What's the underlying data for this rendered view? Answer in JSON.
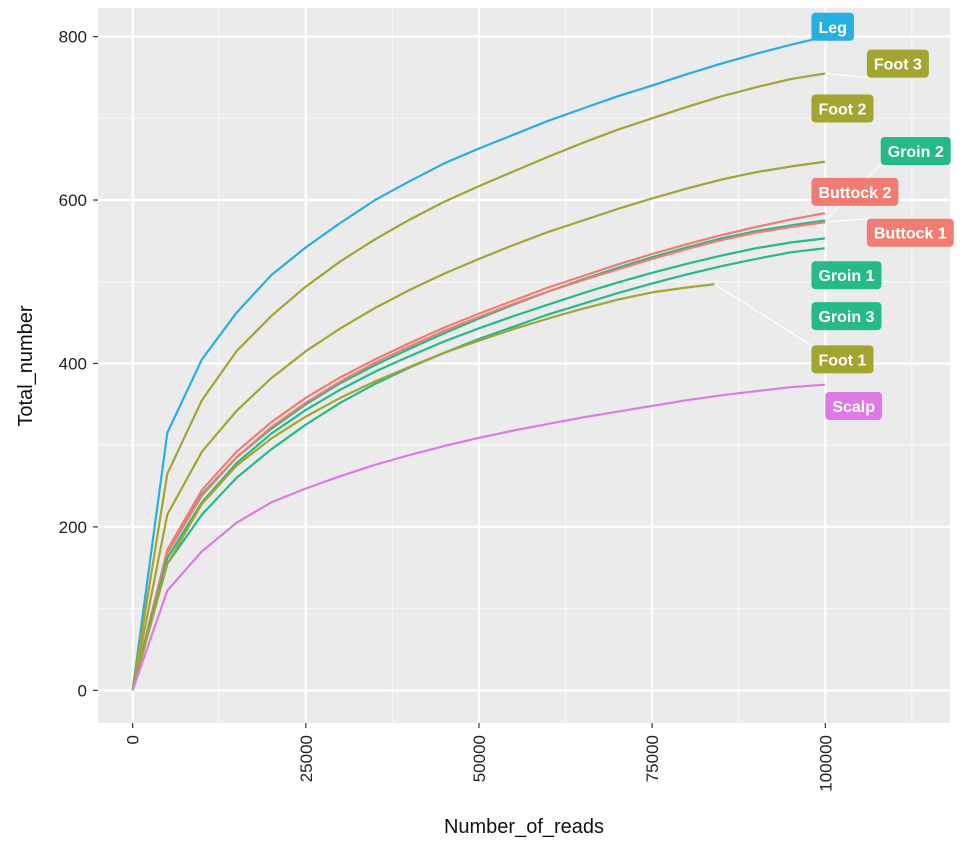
{
  "chart_data": {
    "type": "line",
    "xlabel": "Number_of_reads",
    "ylabel": "Total_number",
    "xlim": [
      -5000,
      118000
    ],
    "ylim": [
      -40,
      835
    ],
    "x_ticks": [
      0,
      25000,
      50000,
      75000,
      100000
    ],
    "y_ticks": [
      0,
      200,
      400,
      600,
      800
    ],
    "grid": true,
    "legend": "direct labels",
    "series": [
      {
        "name": "Leg",
        "color": "#29AEE0",
        "label_at": [
          98000,
          812
        ],
        "points": [
          [
            0,
            0
          ],
          [
            5000,
            315
          ],
          [
            10000,
            405
          ],
          [
            15000,
            462
          ],
          [
            20000,
            508
          ],
          [
            25000,
            542
          ],
          [
            30000,
            572
          ],
          [
            35000,
            600
          ],
          [
            40000,
            623
          ],
          [
            45000,
            645
          ],
          [
            50000,
            663
          ],
          [
            55000,
            680
          ],
          [
            60000,
            697
          ],
          [
            65000,
            712
          ],
          [
            70000,
            727
          ],
          [
            75000,
            740
          ],
          [
            80000,
            754
          ],
          [
            85000,
            767
          ],
          [
            90000,
            779
          ],
          [
            95000,
            790
          ],
          [
            100000,
            800
          ]
        ]
      },
      {
        "name": "Foot 3",
        "color": "#A3A530",
        "label_at": [
          106000,
          767
        ],
        "points": [
          [
            0,
            0
          ],
          [
            5000,
            265
          ],
          [
            10000,
            355
          ],
          [
            15000,
            415
          ],
          [
            20000,
            458
          ],
          [
            25000,
            494
          ],
          [
            30000,
            525
          ],
          [
            35000,
            552
          ],
          [
            40000,
            576
          ],
          [
            45000,
            598
          ],
          [
            50000,
            617
          ],
          [
            55000,
            635
          ],
          [
            60000,
            653
          ],
          [
            65000,
            670
          ],
          [
            70000,
            686
          ],
          [
            75000,
            700
          ],
          [
            80000,
            714
          ],
          [
            85000,
            727
          ],
          [
            90000,
            738
          ],
          [
            95000,
            748
          ],
          [
            100000,
            755
          ]
        ]
      },
      {
        "name": "Foot 2",
        "color": "#A3A530",
        "label_at": [
          98000,
          712
        ],
        "points": [
          [
            0,
            0
          ],
          [
            5000,
            215
          ],
          [
            10000,
            292
          ],
          [
            15000,
            342
          ],
          [
            20000,
            382
          ],
          [
            25000,
            415
          ],
          [
            30000,
            443
          ],
          [
            35000,
            468
          ],
          [
            40000,
            490
          ],
          [
            45000,
            510
          ],
          [
            50000,
            528
          ],
          [
            55000,
            545
          ],
          [
            60000,
            561
          ],
          [
            65000,
            575
          ],
          [
            70000,
            589
          ],
          [
            75000,
            602
          ],
          [
            80000,
            614
          ],
          [
            85000,
            625
          ],
          [
            90000,
            634
          ],
          [
            95000,
            641
          ],
          [
            100000,
            647
          ]
        ]
      },
      {
        "name": "Groin 2",
        "color": "#26B98A",
        "label_at": [
          108000,
          660
        ],
        "points": [
          [
            0,
            0
          ],
          [
            5000,
            170
          ],
          [
            10000,
            240
          ],
          [
            15000,
            285
          ],
          [
            20000,
            320
          ],
          [
            25000,
            350
          ],
          [
            30000,
            376
          ],
          [
            35000,
            398
          ],
          [
            40000,
            418
          ],
          [
            45000,
            437
          ],
          [
            50000,
            455
          ],
          [
            55000,
            472
          ],
          [
            60000,
            488
          ],
          [
            65000,
            503
          ],
          [
            70000,
            517
          ],
          [
            75000,
            530
          ],
          [
            80000,
            542
          ],
          [
            85000,
            553
          ],
          [
            90000,
            562
          ],
          [
            95000,
            569
          ],
          [
            100000,
            575
          ]
        ]
      },
      {
        "name": "Buttock 2",
        "color": "#F07C74",
        "label_at": [
          98000,
          610
        ],
        "points": [
          [
            0,
            0
          ],
          [
            5000,
            172
          ],
          [
            10000,
            245
          ],
          [
            15000,
            292
          ],
          [
            20000,
            328
          ],
          [
            25000,
            358
          ],
          [
            30000,
            383
          ],
          [
            35000,
            405
          ],
          [
            40000,
            425
          ],
          [
            45000,
            444
          ],
          [
            50000,
            461
          ],
          [
            55000,
            477
          ],
          [
            60000,
            493
          ],
          [
            65000,
            507
          ],
          [
            70000,
            521
          ],
          [
            75000,
            534
          ],
          [
            80000,
            546
          ],
          [
            85000,
            557
          ],
          [
            90000,
            567
          ],
          [
            95000,
            576
          ],
          [
            100000,
            584
          ]
        ]
      },
      {
        "name": "Buttock 1",
        "color": "#F07C74",
        "label_at": [
          106000,
          560
        ],
        "points": [
          [
            0,
            0
          ],
          [
            5000,
            168
          ],
          [
            10000,
            238
          ],
          [
            15000,
            285
          ],
          [
            20000,
            322
          ],
          [
            25000,
            352
          ],
          [
            30000,
            378
          ],
          [
            35000,
            401
          ],
          [
            40000,
            421
          ],
          [
            45000,
            440
          ],
          [
            50000,
            457
          ],
          [
            55000,
            473
          ],
          [
            60000,
            488
          ],
          [
            65000,
            502
          ],
          [
            70000,
            515
          ],
          [
            75000,
            528
          ],
          [
            80000,
            540
          ],
          [
            85000,
            551
          ],
          [
            90000,
            560
          ],
          [
            95000,
            567
          ],
          [
            100000,
            573
          ]
        ]
      },
      {
        "name": "Groin 1",
        "color": "#26B98A",
        "label_at": [
          98000,
          508
        ],
        "points": [
          [
            0,
            0
          ],
          [
            5000,
            162
          ],
          [
            10000,
            230
          ],
          [
            15000,
            278
          ],
          [
            20000,
            314
          ],
          [
            25000,
            343
          ],
          [
            30000,
            368
          ],
          [
            35000,
            390
          ],
          [
            40000,
            409
          ],
          [
            45000,
            427
          ],
          [
            50000,
            443
          ],
          [
            55000,
            458
          ],
          [
            60000,
            472
          ],
          [
            65000,
            486
          ],
          [
            70000,
            499
          ],
          [
            75000,
            511
          ],
          [
            80000,
            522
          ],
          [
            85000,
            532
          ],
          [
            90000,
            541
          ],
          [
            95000,
            548
          ],
          [
            100000,
            553
          ]
        ]
      },
      {
        "name": "Groin 3",
        "color": "#26B98A",
        "label_at": [
          98000,
          458
        ],
        "points": [
          [
            0,
            0
          ],
          [
            5000,
            155
          ],
          [
            10000,
            215
          ],
          [
            15000,
            260
          ],
          [
            20000,
            295
          ],
          [
            25000,
            325
          ],
          [
            30000,
            352
          ],
          [
            35000,
            375
          ],
          [
            40000,
            395
          ],
          [
            45000,
            413
          ],
          [
            50000,
            430
          ],
          [
            55000,
            445
          ],
          [
            60000,
            460
          ],
          [
            65000,
            473
          ],
          [
            70000,
            486
          ],
          [
            75000,
            498
          ],
          [
            80000,
            509
          ],
          [
            85000,
            519
          ],
          [
            90000,
            528
          ],
          [
            95000,
            536
          ],
          [
            100000,
            541
          ]
        ]
      },
      {
        "name": "Foot 1",
        "color": "#A3A530",
        "label_at": [
          98000,
          405
        ],
        "points": [
          [
            0,
            0
          ],
          [
            5000,
            155
          ],
          [
            10000,
            228
          ],
          [
            15000,
            275
          ],
          [
            20000,
            308
          ],
          [
            25000,
            335
          ],
          [
            30000,
            358
          ],
          [
            35000,
            378
          ],
          [
            40000,
            396
          ],
          [
            45000,
            413
          ],
          [
            50000,
            428
          ],
          [
            55000,
            442
          ],
          [
            60000,
            455
          ],
          [
            65000,
            467
          ],
          [
            70000,
            478
          ],
          [
            75000,
            487
          ],
          [
            80000,
            493
          ],
          [
            84000,
            497
          ]
        ]
      },
      {
        "name": "Scalp",
        "color": "#DE7AE6",
        "label_at": [
          100000,
          348
        ],
        "points": [
          [
            0,
            0
          ],
          [
            5000,
            122
          ],
          [
            10000,
            170
          ],
          [
            15000,
            205
          ],
          [
            20000,
            230
          ],
          [
            25000,
            247
          ],
          [
            30000,
            262
          ],
          [
            35000,
            276
          ],
          [
            40000,
            288
          ],
          [
            45000,
            299
          ],
          [
            50000,
            309
          ],
          [
            55000,
            318
          ],
          [
            60000,
            326
          ],
          [
            65000,
            334
          ],
          [
            70000,
            341
          ],
          [
            75000,
            348
          ],
          [
            80000,
            355
          ],
          [
            85000,
            361
          ],
          [
            90000,
            366
          ],
          [
            95000,
            371
          ],
          [
            100000,
            374
          ]
        ]
      }
    ]
  }
}
